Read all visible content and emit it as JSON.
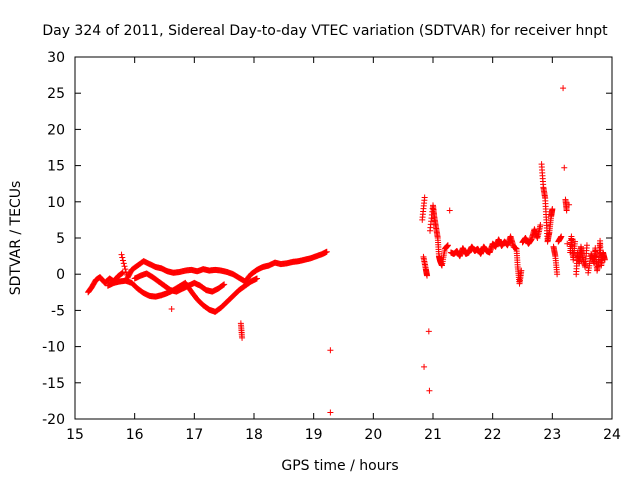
{
  "chart_data": {
    "type": "scatter",
    "title": "Day 324 of 2011, Sidereal Day-to-day VTEC variation (SDTVAR) for receiver hnpt",
    "xlabel": "GPS time / hours",
    "ylabel": "SDTVAR / TECUs",
    "xlim": [
      15,
      24
    ],
    "ylim": [
      -20,
      30
    ],
    "xticks": [
      "15",
      "16",
      "17",
      "18",
      "19",
      "20",
      "21",
      "22",
      "23",
      "24"
    ],
    "yticks": [
      "-20",
      "-15",
      "-10",
      "-5",
      "0",
      "5",
      "10",
      "15",
      "20",
      "25",
      "30"
    ],
    "grid": false,
    "marker": "+",
    "series_color": "#ff0000",
    "series": [
      {
        "name": "hnpt",
        "points": [
          [
            15.22,
            -2.5
          ],
          [
            15.28,
            -1.8
          ],
          [
            15.35,
            -0.8
          ],
          [
            15.42,
            -0.4
          ],
          [
            15.5,
            -1.2
          ],
          [
            15.58,
            -0.6
          ],
          [
            15.65,
            -1.0
          ],
          [
            15.72,
            -0.3
          ],
          [
            15.8,
            0.2
          ],
          [
            15.78,
            2.7
          ],
          [
            15.88,
            -0.5
          ],
          [
            15.95,
            0.6
          ],
          [
            16.05,
            1.2
          ],
          [
            16.15,
            1.8
          ],
          [
            16.25,
            1.4
          ],
          [
            16.35,
            1.0
          ],
          [
            16.45,
            0.8
          ],
          [
            16.55,
            0.4
          ],
          [
            16.65,
            0.2
          ],
          [
            16.75,
            0.3
          ],
          [
            16.85,
            0.5
          ],
          [
            16.95,
            0.6
          ],
          [
            17.05,
            0.4
          ],
          [
            17.15,
            0.7
          ],
          [
            17.25,
            0.5
          ],
          [
            17.35,
            0.6
          ],
          [
            17.45,
            0.5
          ],
          [
            17.55,
            0.3
          ],
          [
            17.65,
            0.0
          ],
          [
            17.75,
            -0.5
          ],
          [
            17.85,
            -1.0
          ],
          [
            17.95,
            0.0
          ],
          [
            18.05,
            0.6
          ],
          [
            18.15,
            1.0
          ],
          [
            18.25,
            1.2
          ],
          [
            18.35,
            1.6
          ],
          [
            18.45,
            1.4
          ],
          [
            18.55,
            1.5
          ],
          [
            18.65,
            1.7
          ],
          [
            18.75,
            1.8
          ],
          [
            18.85,
            2.0
          ],
          [
            18.95,
            2.2
          ],
          [
            19.05,
            2.5
          ],
          [
            19.15,
            2.8
          ],
          [
            19.22,
            3.1
          ],
          [
            15.55,
            -1.6
          ],
          [
            15.65,
            -1.2
          ],
          [
            15.75,
            -1.0
          ],
          [
            15.85,
            -0.9
          ],
          [
            15.95,
            -1.2
          ],
          [
            16.05,
            -2.0
          ],
          [
            16.15,
            -2.6
          ],
          [
            16.25,
            -3.0
          ],
          [
            16.35,
            -3.1
          ],
          [
            16.45,
            -2.9
          ],
          [
            16.55,
            -2.6
          ],
          [
            16.65,
            -2.2
          ],
          [
            16.75,
            -1.7
          ],
          [
            16.85,
            -1.2
          ],
          [
            16.95,
            -2.4
          ],
          [
            17.05,
            -3.5
          ],
          [
            17.15,
            -4.3
          ],
          [
            17.25,
            -4.9
          ],
          [
            17.35,
            -5.2
          ],
          [
            17.45,
            -4.6
          ],
          [
            17.55,
            -3.8
          ],
          [
            17.65,
            -3.0
          ],
          [
            17.75,
            -2.2
          ],
          [
            17.85,
            -1.6
          ],
          [
            17.95,
            -1.0
          ],
          [
            18.05,
            -0.6
          ],
          [
            16.0,
            -0.6
          ],
          [
            16.1,
            -0.2
          ],
          [
            16.2,
            0.1
          ],
          [
            16.3,
            -0.4
          ],
          [
            16.4,
            -1.0
          ],
          [
            16.5,
            -1.6
          ],
          [
            16.6,
            -2.2
          ],
          [
            16.7,
            -2.4
          ],
          [
            16.8,
            -2.0
          ],
          [
            16.9,
            -1.6
          ],
          [
            17.0,
            -1.2
          ],
          [
            17.1,
            -1.6
          ],
          [
            17.2,
            -2.2
          ],
          [
            17.3,
            -2.4
          ],
          [
            17.4,
            -2.0
          ],
          [
            17.5,
            -1.4
          ],
          [
            16.62,
            -4.8
          ],
          [
            17.78,
            -6.8
          ],
          [
            17.8,
            -8.8
          ],
          [
            19.28,
            -10.5
          ],
          [
            19.28,
            -19.1
          ],
          [
            20.82,
            7.5
          ],
          [
            20.86,
            10.6
          ],
          [
            20.84,
            2.4
          ],
          [
            20.88,
            0.7
          ],
          [
            20.9,
            -0.2
          ],
          [
            20.85,
            -12.8
          ],
          [
            20.93,
            -7.9
          ],
          [
            20.94,
            -16.1
          ],
          [
            20.95,
            6.0
          ],
          [
            21.0,
            9.5
          ],
          [
            21.02,
            8.0
          ],
          [
            21.05,
            6.5
          ],
          [
            21.08,
            5.0
          ],
          [
            21.1,
            2.5
          ],
          [
            21.12,
            1.8
          ],
          [
            21.15,
            1.2
          ],
          [
            21.2,
            3.5
          ],
          [
            21.25,
            4.0
          ],
          [
            21.28,
            8.8
          ],
          [
            21.3,
            3.0
          ],
          [
            21.35,
            2.8
          ],
          [
            21.4,
            3.2
          ],
          [
            21.45,
            2.5
          ],
          [
            21.5,
            3.6
          ],
          [
            21.55,
            2.8
          ],
          [
            21.6,
            3.0
          ],
          [
            21.65,
            3.8
          ],
          [
            21.7,
            3.2
          ],
          [
            21.75,
            3.5
          ],
          [
            21.8,
            2.8
          ],
          [
            21.85,
            3.8
          ],
          [
            21.9,
            3.2
          ],
          [
            21.95,
            3.0
          ],
          [
            22.0,
            4.2
          ],
          [
            22.05,
            3.8
          ],
          [
            22.1,
            4.8
          ],
          [
            22.15,
            3.9
          ],
          [
            22.2,
            4.5
          ],
          [
            22.25,
            4.0
          ],
          [
            22.3,
            5.2
          ],
          [
            22.35,
            3.8
          ],
          [
            22.4,
            3.5
          ],
          [
            22.42,
            1.0
          ],
          [
            22.45,
            -1.3
          ],
          [
            22.48,
            0.5
          ],
          [
            22.5,
            4.4
          ],
          [
            22.55,
            5.0
          ],
          [
            22.6,
            4.2
          ],
          [
            22.65,
            4.8
          ],
          [
            22.7,
            6.2
          ],
          [
            22.75,
            5.0
          ],
          [
            22.8,
            6.8
          ],
          [
            22.82,
            15.2
          ],
          [
            22.85,
            12.0
          ],
          [
            22.88,
            10.5
          ],
          [
            22.9,
            7.5
          ],
          [
            22.92,
            4.5
          ],
          [
            22.95,
            5.8
          ],
          [
            22.98,
            8.0
          ],
          [
            23.0,
            9.0
          ],
          [
            23.02,
            3.8
          ],
          [
            23.05,
            2.5
          ],
          [
            23.08,
            0.0
          ],
          [
            23.1,
            4.5
          ],
          [
            23.15,
            5.2
          ],
          [
            23.18,
            25.7
          ],
          [
            23.2,
            14.7
          ],
          [
            23.22,
            10.3
          ],
          [
            23.24,
            8.8
          ],
          [
            23.25,
            4.2
          ],
          [
            23.28,
            9.6
          ],
          [
            23.3,
            3.0
          ],
          [
            23.32,
            5.2
          ],
          [
            23.35,
            2.0
          ],
          [
            23.38,
            4.5
          ],
          [
            23.4,
            0.0
          ],
          [
            23.42,
            3.0
          ],
          [
            23.45,
            1.5
          ],
          [
            23.48,
            3.8
          ],
          [
            23.5,
            2.5
          ],
          [
            23.55,
            1.0
          ],
          [
            23.58,
            4.0
          ],
          [
            23.6,
            0.2
          ],
          [
            23.65,
            2.8
          ],
          [
            23.7,
            1.5
          ],
          [
            23.72,
            3.6
          ],
          [
            23.75,
            0.5
          ],
          [
            23.78,
            2.0
          ],
          [
            23.8,
            4.6
          ],
          [
            23.82,
            1.2
          ],
          [
            23.85,
            3.0
          ],
          [
            23.88,
            2.0
          ]
        ]
      }
    ]
  }
}
